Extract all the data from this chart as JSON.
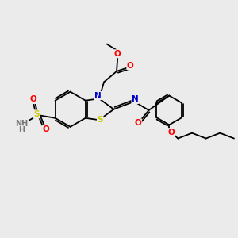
{
  "background_color": "#ebebeb",
  "bond_color": "#000000",
  "atom_colors": {
    "N": "#0000cc",
    "O": "#ff0000",
    "S": "#cccc00",
    "H": "#777777"
  },
  "lw": 1.3,
  "fs": 7.0,
  "fig_width": 3.0,
  "fig_height": 3.0,
  "dpi": 100,
  "xlim": [
    0,
    12
  ],
  "ylim": [
    0,
    10
  ]
}
